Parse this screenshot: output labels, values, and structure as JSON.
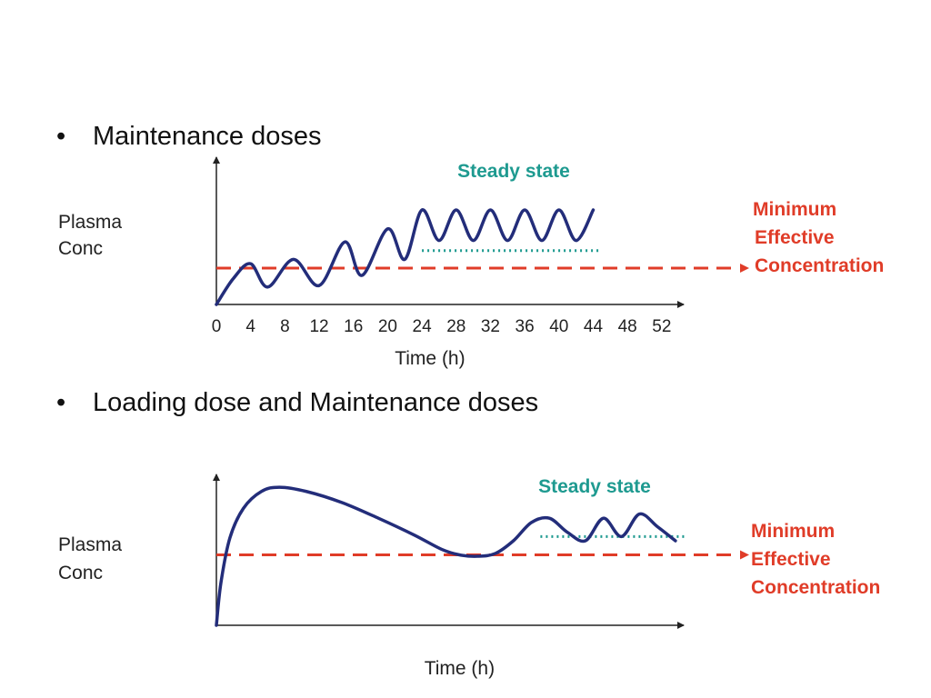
{
  "colors": {
    "curve": "#232d7a",
    "mec_line": "#e03c28",
    "steady": "#1e9a90",
    "axis": "#222222"
  },
  "chart_data": [
    {
      "type": "line",
      "bullet": "Maintenance doses",
      "ylabel": [
        "Plasma",
        "Conc"
      ],
      "xlabel": "Time (h)",
      "x_ticks": [
        0,
        4,
        8,
        12,
        16,
        20,
        24,
        28,
        32,
        36,
        40,
        44,
        48,
        52
      ],
      "xlim": [
        0,
        52
      ],
      "ylim": [
        0,
        1
      ],
      "steady_state_label": "Steady state",
      "steady_state_level": 0.37,
      "steady_state_range": [
        24,
        45
      ],
      "mec_label": [
        "Minimum",
        "Effective",
        "Concentration"
      ],
      "mec_level": 0.25,
      "series": [
        {
          "x": [
            0,
            2,
            4,
            6,
            9,
            12,
            15,
            17,
            20,
            22,
            24,
            26,
            28,
            30,
            32,
            34,
            36,
            38,
            40,
            42,
            44
          ],
          "y": [
            0.0,
            0.18,
            0.28,
            0.12,
            0.31,
            0.13,
            0.43,
            0.2,
            0.52,
            0.31,
            0.65,
            0.44,
            0.65,
            0.44,
            0.65,
            0.44,
            0.65,
            0.44,
            0.65,
            0.44,
            0.65
          ]
        }
      ]
    },
    {
      "type": "line",
      "bullet": "Loading dose and Maintenance doses",
      "ylabel": [
        "Plasma",
        "Conc"
      ],
      "xlabel": "Time (h)",
      "x_ticks": [],
      "xlim": [
        0,
        52
      ],
      "ylim": [
        0,
        1
      ],
      "steady_state_label": "Steady state",
      "steady_state_level": 0.63,
      "steady_state_range": [
        36,
        52
      ],
      "mec_label": [
        "Minimum",
        "Effective",
        "Concentration"
      ],
      "mec_level": 0.5,
      "series": [
        {
          "x": [
            0,
            0.5,
            1.5,
            3,
            5,
            7,
            10,
            14,
            18,
            22,
            25,
            27,
            29,
            31,
            33,
            35,
            37,
            39,
            41,
            43,
            45,
            47,
            49,
            51
          ],
          "y": [
            0.0,
            0.3,
            0.62,
            0.83,
            0.95,
            0.98,
            0.95,
            0.87,
            0.76,
            0.64,
            0.54,
            0.5,
            0.49,
            0.51,
            0.6,
            0.73,
            0.76,
            0.66,
            0.6,
            0.76,
            0.63,
            0.79,
            0.7,
            0.6
          ]
        }
      ]
    }
  ]
}
